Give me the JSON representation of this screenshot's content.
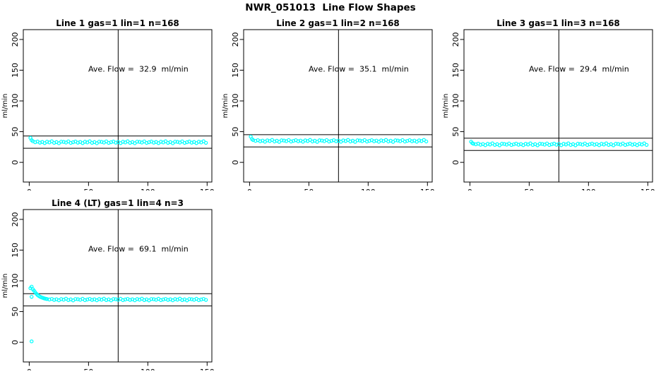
{
  "page": {
    "title": "NWR_051013  Line Flow Shapes"
  },
  "chart_data": {
    "type": "scatter",
    "layout": {
      "rows": 2,
      "cols": 3,
      "panels_used": 4,
      "grid": false,
      "legend": "none"
    },
    "point_color": "#00FFFF",
    "axis_color": "#000000",
    "background_color": "#FFFFFF",
    "xlim": [
      -5,
      154
    ],
    "ylim": [
      -32,
      216
    ],
    "x_ticks": [
      0,
      50,
      100,
      150
    ],
    "y_ticks": [
      0,
      50,
      100,
      150,
      200
    ],
    "xlabel": "",
    "ylabel": "ml/min",
    "vline_x": 75,
    "annotation_pos": [
      92,
      152
    ],
    "point_style": "open-circle",
    "noise_cycle": [
      0.0,
      1.1,
      -0.7,
      0.4,
      -1.4,
      0.8,
      -0.3,
      1.5,
      -1.0,
      0.2,
      -1.6,
      0.9,
      0.5,
      -0.5,
      1.3,
      -1.1
    ],
    "panels": [
      {
        "title": "Line 1 gas=1 lin=1 n=168",
        "annotation": "Ave. Flow =  32.9  ml/min",
        "ave_flow": 32.9,
        "ref_lines": [
          42.9,
          22.9
        ],
        "band": {
          "x_start": 5,
          "x_end": 149,
          "x_step": 2,
          "base": 32.8,
          "noise_scale": 1.0
        },
        "lead_points": [
          [
            1,
            39.8
          ],
          [
            2,
            36.2
          ],
          [
            3,
            34.5
          ]
        ]
      },
      {
        "title": "Line 2 gas=1 lin=2 n=168",
        "annotation": "Ave. Flow =  35.1  ml/min",
        "ave_flow": 35.1,
        "ref_lines": [
          45.1,
          25.1
        ],
        "band": {
          "x_start": 5,
          "x_end": 149,
          "x_step": 2,
          "base": 35.0,
          "noise_scale": 1.0
        },
        "lead_points": [
          [
            1,
            41.8
          ],
          [
            2,
            38.0
          ],
          [
            3,
            36.3
          ]
        ]
      },
      {
        "title": "Line 3 gas=1 lin=3 n=168",
        "annotation": "Ave. Flow =  29.4  ml/min",
        "ave_flow": 29.4,
        "ref_lines": [
          39.4,
          19.4
        ],
        "band": {
          "x_start": 5,
          "x_end": 149,
          "x_step": 2,
          "base": 29.4,
          "noise_scale": 1.0
        },
        "lead_points": [
          [
            1,
            33.6
          ],
          [
            2,
            31.3
          ],
          [
            3,
            30.3
          ]
        ]
      },
      {
        "title": "Line 4 (LT) gas=1 lin=4 n=3",
        "annotation": "Ave. Flow =  69.1  ml/min",
        "ave_flow": 69.1,
        "ref_lines": [
          79.1,
          59.1
        ],
        "band": {
          "x_start": 17,
          "x_end": 149,
          "x_step": 2,
          "base": 69.6,
          "noise_scale": 0.9
        },
        "lead_points": [
          [
            1,
            88.0
          ],
          [
            2,
            90.5
          ],
          [
            2,
            74.0
          ],
          [
            2,
            1.5
          ],
          [
            3,
            86.5
          ],
          [
            4,
            84.0
          ],
          [
            5,
            81.5
          ],
          [
            6,
            79.0
          ],
          [
            7,
            77.0
          ],
          [
            8,
            75.5
          ],
          [
            9,
            74.3
          ],
          [
            10,
            73.4
          ],
          [
            11,
            72.6
          ],
          [
            12,
            71.9
          ],
          [
            13,
            71.3
          ],
          [
            14,
            70.8
          ],
          [
            15,
            70.4
          ]
        ]
      }
    ]
  }
}
